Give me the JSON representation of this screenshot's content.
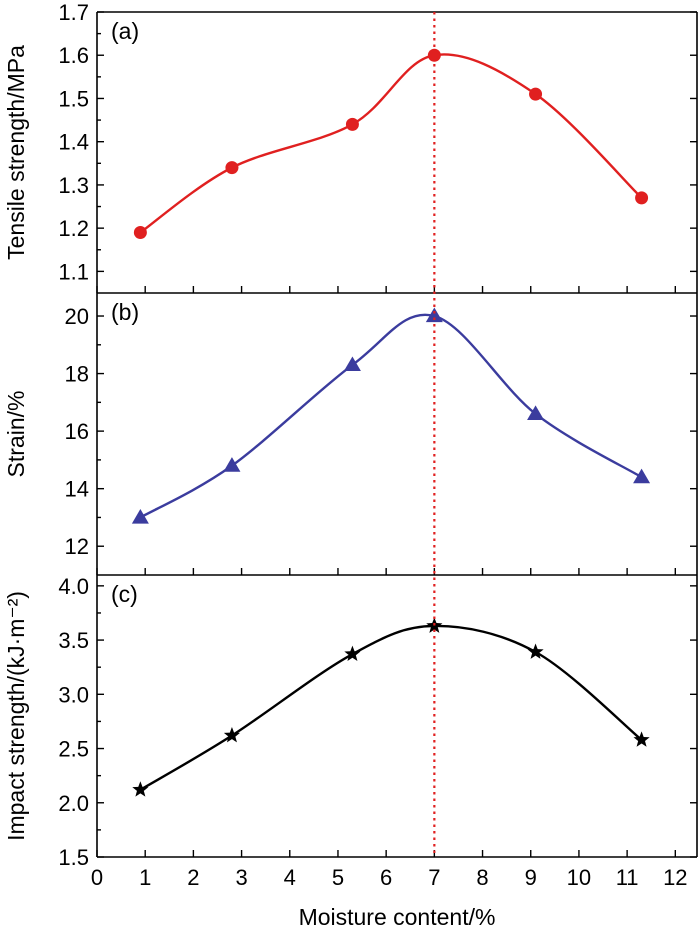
{
  "chart_data": [
    {
      "type": "line",
      "panel_label": "(a)",
      "ylabel": "Tensile strength/MPa",
      "ylim": [
        1.05,
        1.7
      ],
      "yticks": [
        "1.1",
        "1.2",
        "1.3",
        "1.4",
        "1.5",
        "1.6",
        "1.7"
      ],
      "color": "#e02020",
      "marker": "circle",
      "series": [
        {
          "name": "Tensile strength",
          "x": [
            0.9,
            2.8,
            5.3,
            7.0,
            9.1,
            11.3
          ],
          "y": [
            1.19,
            1.34,
            1.44,
            1.6,
            1.51,
            1.27
          ]
        }
      ]
    },
    {
      "type": "line",
      "panel_label": "(b)",
      "ylabel": "Strain/%",
      "ylim": [
        11.0,
        20.8
      ],
      "yticks": [
        "12",
        "14",
        "16",
        "18",
        "20"
      ],
      "color": "#3b3c9e",
      "marker": "triangle",
      "series": [
        {
          "name": "Strain",
          "x": [
            0.9,
            2.8,
            5.3,
            7.0,
            9.1,
            11.3
          ],
          "y": [
            13.0,
            14.8,
            18.3,
            20.0,
            16.6,
            14.4
          ]
        }
      ]
    },
    {
      "type": "line",
      "panel_label": "(c)",
      "ylabel": "Impact strength/(kJ·m⁻²)",
      "ylim": [
        1.5,
        4.1
      ],
      "yticks": [
        "1.5",
        "2.0",
        "2.5",
        "3.0",
        "3.5",
        "4.0"
      ],
      "color": "#000000",
      "marker": "star",
      "series": [
        {
          "name": "Impact strength",
          "x": [
            0.9,
            2.8,
            5.3,
            7.0,
            9.1,
            11.3
          ],
          "y": [
            2.12,
            2.62,
            3.37,
            3.63,
            3.39,
            2.58
          ]
        }
      ]
    }
  ],
  "shared_x": {
    "xlabel": "Moisture content/%",
    "xlim": [
      0,
      12.45
    ],
    "xticks": [
      "0",
      "1",
      "2",
      "3",
      "4",
      "5",
      "6",
      "7",
      "8",
      "9",
      "10",
      "11",
      "12"
    ],
    "reference_line_x": 7,
    "reference_line_color": "#e02020"
  }
}
